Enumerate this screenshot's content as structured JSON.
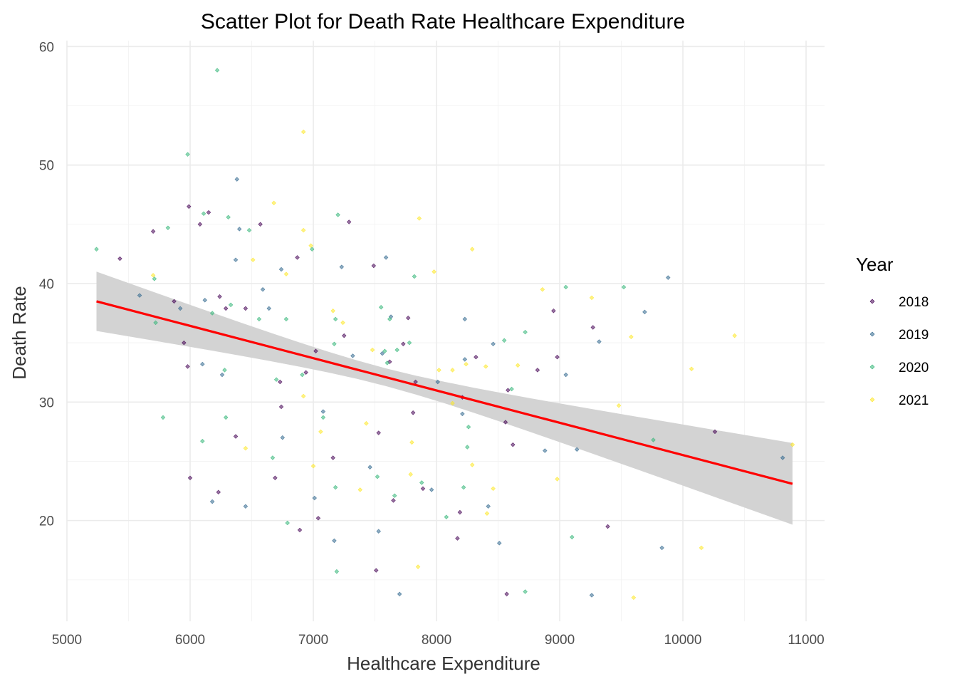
{
  "chart_data": {
    "type": "scatter",
    "title": "Scatter Plot for Death Rate Healthcare Expenditure",
    "xlabel": "Healthcare Expenditure",
    "ylabel": "Death Rate",
    "xlim": [
      5000,
      11150
    ],
    "ylim": [
      11.5,
      60.5
    ],
    "x_ticks": [
      5000,
      6000,
      7000,
      8000,
      9000,
      10000,
      11000
    ],
    "y_ticks": [
      20,
      30,
      40,
      50,
      60
    ],
    "grid": true,
    "legend": {
      "title": "Year",
      "placement": "right"
    },
    "series": [
      {
        "name": "2018",
        "color": "#440154",
        "points": [
          [
            5430,
            42.1
          ],
          [
            5700,
            44.4
          ],
          [
            5870,
            38.5
          ],
          [
            5950,
            35.0
          ],
          [
            5980,
            33.0
          ],
          [
            5990,
            46.5
          ],
          [
            6000,
            23.6
          ],
          [
            6080,
            45.0
          ],
          [
            6150,
            46.0
          ],
          [
            6230,
            22.4
          ],
          [
            6240,
            38.9
          ],
          [
            6290,
            37.9
          ],
          [
            6370,
            27.1
          ],
          [
            6450,
            37.9
          ],
          [
            6570,
            45.0
          ],
          [
            6690,
            23.6
          ],
          [
            6730,
            31.7
          ],
          [
            6740,
            29.6
          ],
          [
            6870,
            42.2
          ],
          [
            6890,
            19.2
          ],
          [
            6940,
            32.5
          ],
          [
            7020,
            34.3
          ],
          [
            7040,
            20.2
          ],
          [
            7160,
            25.3
          ],
          [
            7250,
            35.6
          ],
          [
            7290,
            45.2
          ],
          [
            7490,
            41.5
          ],
          [
            7510,
            15.8
          ],
          [
            7530,
            27.4
          ],
          [
            7620,
            33.4
          ],
          [
            7650,
            21.7
          ],
          [
            7730,
            34.9
          ],
          [
            7770,
            37.1
          ],
          [
            7810,
            29.1
          ],
          [
            7830,
            31.7
          ],
          [
            7890,
            22.7
          ],
          [
            8170,
            18.5
          ],
          [
            8190,
            20.7
          ],
          [
            8210,
            30.4
          ],
          [
            8320,
            33.8
          ],
          [
            8560,
            28.3
          ],
          [
            8570,
            13.8
          ],
          [
            8580,
            31.0
          ],
          [
            8620,
            26.4
          ],
          [
            8820,
            32.7
          ],
          [
            8950,
            37.7
          ],
          [
            8980,
            33.8
          ],
          [
            9270,
            36.3
          ],
          [
            9390,
            19.5
          ],
          [
            10260,
            27.5
          ]
        ]
      },
      {
        "name": "2019",
        "color": "#31688e",
        "points": [
          [
            5590,
            39.0
          ],
          [
            5920,
            37.9
          ],
          [
            6100,
            33.2
          ],
          [
            6120,
            38.6
          ],
          [
            6180,
            21.6
          ],
          [
            6260,
            32.3
          ],
          [
            6370,
            42.0
          ],
          [
            6380,
            48.8
          ],
          [
            6400,
            44.6
          ],
          [
            6450,
            21.2
          ],
          [
            6590,
            39.5
          ],
          [
            6640,
            37.9
          ],
          [
            6740,
            41.2
          ],
          [
            6750,
            27.0
          ],
          [
            7010,
            21.9
          ],
          [
            7080,
            29.2
          ],
          [
            7170,
            18.3
          ],
          [
            7230,
            41.4
          ],
          [
            7320,
            33.9
          ],
          [
            7460,
            24.5
          ],
          [
            7530,
            19.1
          ],
          [
            7560,
            34.1
          ],
          [
            7590,
            42.2
          ],
          [
            7630,
            37.2
          ],
          [
            7700,
            13.8
          ],
          [
            7960,
            22.6
          ],
          [
            8010,
            31.7
          ],
          [
            8210,
            29.0
          ],
          [
            8230,
            37.0
          ],
          [
            8230,
            33.6
          ],
          [
            8420,
            21.2
          ],
          [
            8460,
            34.9
          ],
          [
            8510,
            18.1
          ],
          [
            8880,
            25.9
          ],
          [
            9050,
            32.3
          ],
          [
            9140,
            26.0
          ],
          [
            9260,
            13.7
          ],
          [
            9320,
            35.1
          ],
          [
            9690,
            37.6
          ],
          [
            9830,
            17.7
          ],
          [
            9880,
            40.5
          ],
          [
            10810,
            25.3
          ]
        ]
      },
      {
        "name": "2020",
        "color": "#35b779",
        "points": [
          [
            5240,
            42.9
          ],
          [
            5710,
            40.4
          ],
          [
            5720,
            36.7
          ],
          [
            5780,
            28.7
          ],
          [
            5820,
            44.7
          ],
          [
            5980,
            50.9
          ],
          [
            6100,
            26.7
          ],
          [
            6110,
            45.9
          ],
          [
            6180,
            37.5
          ],
          [
            6220,
            58.0
          ],
          [
            6280,
            32.7
          ],
          [
            6290,
            28.7
          ],
          [
            6310,
            45.6
          ],
          [
            6330,
            38.2
          ],
          [
            6480,
            44.5
          ],
          [
            6560,
            37.0
          ],
          [
            6670,
            25.3
          ],
          [
            6700,
            31.9
          ],
          [
            6780,
            37.0
          ],
          [
            6790,
            19.8
          ],
          [
            6910,
            32.3
          ],
          [
            6990,
            42.9
          ],
          [
            7080,
            28.7
          ],
          [
            7170,
            34.9
          ],
          [
            7180,
            37.0
          ],
          [
            7190,
            15.7
          ],
          [
            7200,
            45.8
          ],
          [
            7180,
            22.8
          ],
          [
            7520,
            23.7
          ],
          [
            7550,
            38.0
          ],
          [
            7580,
            34.3
          ],
          [
            7600,
            33.3
          ],
          [
            7620,
            37.0
          ],
          [
            7660,
            22.1
          ],
          [
            7680,
            34.4
          ],
          [
            7780,
            35.0
          ],
          [
            7820,
            40.6
          ],
          [
            7880,
            23.2
          ],
          [
            8080,
            20.3
          ],
          [
            8220,
            22.8
          ],
          [
            8250,
            26.2
          ],
          [
            8260,
            27.9
          ],
          [
            8550,
            35.2
          ],
          [
            8610,
            31.1
          ],
          [
            8720,
            35.9
          ],
          [
            8720,
            14.0
          ],
          [
            9050,
            39.7
          ],
          [
            9100,
            18.6
          ],
          [
            9520,
            39.7
          ],
          [
            9760,
            26.8
          ]
        ]
      },
      {
        "name": "2021",
        "color": "#fde725",
        "points": [
          [
            5700,
            40.7
          ],
          [
            6450,
            26.1
          ],
          [
            6510,
            42.0
          ],
          [
            6680,
            46.8
          ],
          [
            6780,
            40.8
          ],
          [
            6920,
            44.5
          ],
          [
            6920,
            30.5
          ],
          [
            6920,
            52.8
          ],
          [
            6980,
            43.2
          ],
          [
            7000,
            24.6
          ],
          [
            7060,
            27.5
          ],
          [
            7160,
            37.7
          ],
          [
            7240,
            36.7
          ],
          [
            7380,
            22.6
          ],
          [
            7430,
            28.2
          ],
          [
            7480,
            34.4
          ],
          [
            7790,
            23.9
          ],
          [
            7800,
            26.6
          ],
          [
            7850,
            16.1
          ],
          [
            7860,
            45.5
          ],
          [
            7980,
            41.0
          ],
          [
            8020,
            32.7
          ],
          [
            8130,
            32.7
          ],
          [
            8130,
            29.9
          ],
          [
            8240,
            33.2
          ],
          [
            8290,
            42.9
          ],
          [
            8290,
            24.7
          ],
          [
            8400,
            33.0
          ],
          [
            8410,
            20.6
          ],
          [
            8460,
            22.7
          ],
          [
            8660,
            33.1
          ],
          [
            8860,
            39.5
          ],
          [
            8980,
            23.5
          ],
          [
            9260,
            38.8
          ],
          [
            9480,
            29.7
          ],
          [
            9580,
            35.5
          ],
          [
            9600,
            13.5
          ],
          [
            10070,
            32.8
          ],
          [
            10150,
            17.7
          ],
          [
            10420,
            35.6
          ],
          [
            10890,
            26.4
          ]
        ]
      }
    ],
    "trend": {
      "method": "linear",
      "color": "#ff0000",
      "band_color": "#d3d3d3",
      "x": [
        5240,
        10890
      ],
      "y": [
        38.5,
        23.1
      ],
      "ci_lower": [
        36.1,
        19.6
      ],
      "ci_upper": [
        41.1,
        26.5
      ]
    }
  }
}
